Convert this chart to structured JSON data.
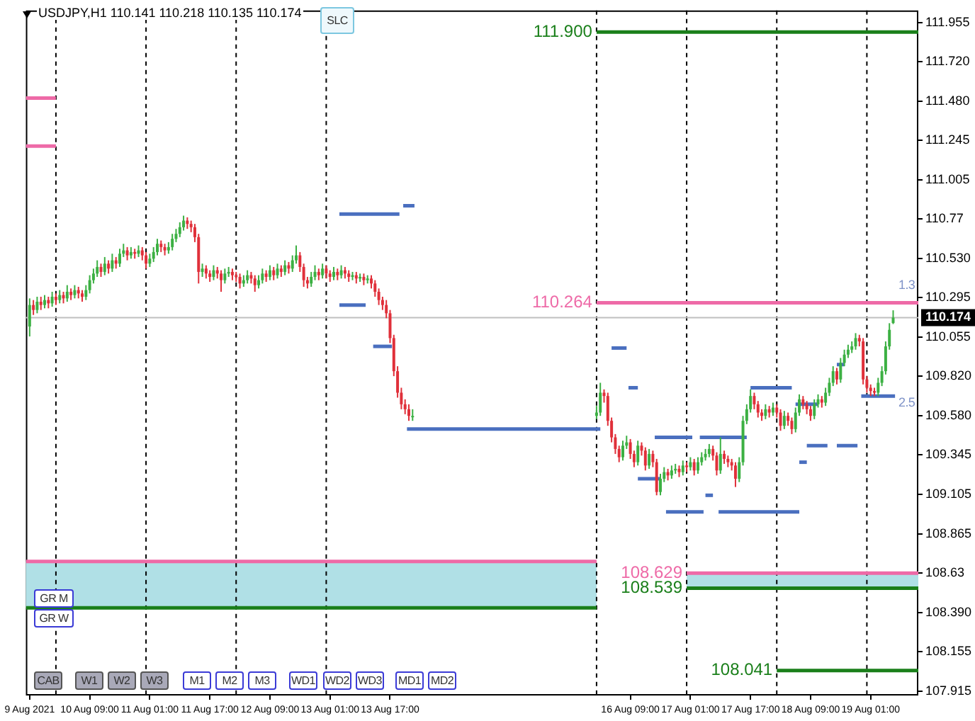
{
  "chart_data": {
    "type": "candlestick",
    "title": "USDJPY,H1  110.141 110.218 110.135 110.174",
    "xlim": [
      "2021-08-09T16:00",
      "2021-08-19T13:42"
    ],
    "ylim": [
      107.89,
      112.03
    ],
    "xticks": [
      {
        "value": "2021-08-09T17:00",
        "label": "9 Aug 2021"
      },
      {
        "value": "2021-08-10T09:00",
        "label": "10 Aug 09:00"
      },
      {
        "value": "2021-08-11T01:00",
        "label": "11 Aug 01:00"
      },
      {
        "value": "2021-08-11T17:00",
        "label": "11 Aug 17:00"
      },
      {
        "value": "2021-08-12T09:00",
        "label": "12 Aug 09:00"
      },
      {
        "value": "2021-08-13T01:00",
        "label": "13 Aug 01:00"
      },
      {
        "value": "2021-08-13T17:00",
        "label": "13 Aug 17:00"
      },
      {
        "value": "2021-08-16T09:00",
        "label": "16 Aug 09:00"
      },
      {
        "value": "2021-08-17T01:00",
        "label": "17 Aug 01:00"
      },
      {
        "value": "2021-08-17T17:00",
        "label": "17 Aug 17:00"
      },
      {
        "value": "2021-08-18T09:00",
        "label": "18 Aug 09:00"
      },
      {
        "value": "2021-08-19T01:00",
        "label": "19 Aug 01:00"
      }
    ],
    "yticks": [
      107.915,
      108.155,
      {
        "value": 108.39,
        "label": "108.390"
      },
      108.63,
      108.865,
      109.105,
      109.345,
      {
        "value": 109.58,
        "label": "109.580"
      },
      {
        "value": 109.82,
        "label": "109.820"
      },
      110.055,
      110.295,
      {
        "value": 110.53,
        "label": "110.530"
      },
      110.77,
      111.005,
      111.245,
      {
        "value": 111.48,
        "label": "111.480"
      },
      {
        "value": 111.72,
        "label": "111.720"
      },
      111.955
    ],
    "x": [
      "2021-08-09T17:00",
      "2021-08-09T18:00",
      "2021-08-09T19:00",
      "2021-08-09T20:00",
      "2021-08-09T21:00",
      "2021-08-09T22:00",
      "2021-08-09T23:00",
      "2021-08-10T00:00",
      "2021-08-10T01:00",
      "2021-08-10T02:00",
      "2021-08-10T03:00",
      "2021-08-10T04:00",
      "2021-08-10T05:00",
      "2021-08-10T06:00",
      "2021-08-10T07:00",
      "2021-08-10T08:00",
      "2021-08-10T09:00",
      "2021-08-10T10:00",
      "2021-08-10T11:00",
      "2021-08-10T12:00",
      "2021-08-10T13:00",
      "2021-08-10T14:00",
      "2021-08-10T15:00",
      "2021-08-10T16:00",
      "2021-08-10T17:00",
      "2021-08-10T18:00",
      "2021-08-10T19:00",
      "2021-08-10T20:00",
      "2021-08-10T21:00",
      "2021-08-10T22:00",
      "2021-08-10T23:00",
      "2021-08-11T00:00",
      "2021-08-11T01:00",
      "2021-08-11T02:00",
      "2021-08-11T03:00",
      "2021-08-11T04:00",
      "2021-08-11T05:00",
      "2021-08-11T06:00",
      "2021-08-11T07:00",
      "2021-08-11T08:00",
      "2021-08-11T09:00",
      "2021-08-11T10:00",
      "2021-08-11T11:00",
      "2021-08-11T12:00",
      "2021-08-11T13:00",
      "2021-08-11T14:00",
      "2021-08-11T15:00",
      "2021-08-11T16:00",
      "2021-08-11T17:00",
      "2021-08-11T18:00",
      "2021-08-11T19:00",
      "2021-08-11T20:00",
      "2021-08-11T21:00",
      "2021-08-11T22:00",
      "2021-08-11T23:00",
      "2021-08-12T00:00",
      "2021-08-12T01:00",
      "2021-08-12T02:00",
      "2021-08-12T03:00",
      "2021-08-12T04:00",
      "2021-08-12T05:00",
      "2021-08-12T06:00",
      "2021-08-12T07:00",
      "2021-08-12T08:00",
      "2021-08-12T09:00",
      "2021-08-12T10:00",
      "2021-08-12T11:00",
      "2021-08-12T12:00",
      "2021-08-12T13:00",
      "2021-08-12T14:00",
      "2021-08-12T15:00",
      "2021-08-12T16:00",
      "2021-08-12T17:00",
      "2021-08-12T18:00",
      "2021-08-12T19:00",
      "2021-08-12T20:00",
      "2021-08-12T21:00",
      "2021-08-12T22:00",
      "2021-08-12T23:00",
      "2021-08-13T00:00",
      "2021-08-13T01:00",
      "2021-08-13T02:00",
      "2021-08-13T03:00",
      "2021-08-13T04:00",
      "2021-08-13T05:00",
      "2021-08-13T06:00",
      "2021-08-13T07:00",
      "2021-08-13T08:00",
      "2021-08-13T09:00",
      "2021-08-13T10:00",
      "2021-08-13T11:00",
      "2021-08-13T12:00",
      "2021-08-13T13:00",
      "2021-08-13T14:00",
      "2021-08-13T15:00",
      "2021-08-13T16:00",
      "2021-08-13T17:00",
      "2021-08-13T18:00",
      "2021-08-13T19:00",
      "2021-08-13T20:00",
      "2021-08-13T21:00",
      "2021-08-13T22:00",
      "2021-08-13T23:00",
      "2021-08-16T00:00",
      "2021-08-16T01:00",
      "2021-08-16T02:00",
      "2021-08-16T03:00",
      "2021-08-16T04:00",
      "2021-08-16T05:00",
      "2021-08-16T06:00",
      "2021-08-16T07:00",
      "2021-08-16T08:00",
      "2021-08-16T09:00",
      "2021-08-16T10:00",
      "2021-08-16T11:00",
      "2021-08-16T12:00",
      "2021-08-16T13:00",
      "2021-08-16T14:00",
      "2021-08-16T15:00",
      "2021-08-16T16:00",
      "2021-08-16T17:00",
      "2021-08-16T18:00",
      "2021-08-16T19:00",
      "2021-08-16T20:00",
      "2021-08-16T21:00",
      "2021-08-16T22:00",
      "2021-08-16T23:00",
      "2021-08-17T00:00",
      "2021-08-17T01:00",
      "2021-08-17T02:00",
      "2021-08-17T03:00",
      "2021-08-17T04:00",
      "2021-08-17T05:00",
      "2021-08-17T06:00",
      "2021-08-17T07:00",
      "2021-08-17T08:00",
      "2021-08-17T09:00",
      "2021-08-17T10:00",
      "2021-08-17T11:00",
      "2021-08-17T12:00",
      "2021-08-17T13:00",
      "2021-08-17T14:00",
      "2021-08-17T15:00",
      "2021-08-17T16:00",
      "2021-08-17T17:00",
      "2021-08-17T18:00",
      "2021-08-17T19:00",
      "2021-08-17T20:00",
      "2021-08-17T21:00",
      "2021-08-17T22:00",
      "2021-08-17T23:00",
      "2021-08-18T00:00",
      "2021-08-18T01:00",
      "2021-08-18T02:00",
      "2021-08-18T03:00",
      "2021-08-18T04:00",
      "2021-08-18T05:00",
      "2021-08-18T06:00",
      "2021-08-18T07:00",
      "2021-08-18T08:00",
      "2021-08-18T09:00",
      "2021-08-18T10:00",
      "2021-08-18T11:00",
      "2021-08-18T12:00",
      "2021-08-18T13:00",
      "2021-08-18T14:00",
      "2021-08-18T15:00",
      "2021-08-18T16:00",
      "2021-08-18T17:00",
      "2021-08-18T18:00",
      "2021-08-18T19:00",
      "2021-08-18T20:00",
      "2021-08-18T21:00",
      "2021-08-18T22:00",
      "2021-08-18T23:00",
      "2021-08-19T00:00",
      "2021-08-19T01:00",
      "2021-08-19T02:00",
      "2021-08-19T03:00",
      "2021-08-19T04:00",
      "2021-08-19T05:00",
      "2021-08-19T06:00",
      "2021-08-19T07:00"
    ],
    "ohlc": [
      [
        110.12,
        110.29,
        110.06,
        110.25
      ],
      [
        110.25,
        110.28,
        110.19,
        110.22
      ],
      [
        110.22,
        110.3,
        110.2,
        110.27
      ],
      [
        110.27,
        110.3,
        110.22,
        110.25
      ],
      [
        110.25,
        110.31,
        110.23,
        110.28
      ],
      [
        110.28,
        110.3,
        110.23,
        110.26
      ],
      [
        110.26,
        110.33,
        110.24,
        110.3
      ],
      [
        110.3,
        110.32,
        110.25,
        110.28
      ],
      [
        110.28,
        110.34,
        110.26,
        110.31
      ],
      [
        110.31,
        110.33,
        110.26,
        110.29
      ],
      [
        110.29,
        110.37,
        110.27,
        110.33
      ],
      [
        110.33,
        110.35,
        110.28,
        110.31
      ],
      [
        110.31,
        110.37,
        110.29,
        110.34
      ],
      [
        110.34,
        110.36,
        110.29,
        110.32
      ],
      [
        110.32,
        110.34,
        110.27,
        110.3
      ],
      [
        110.3,
        110.37,
        110.28,
        110.34
      ],
      [
        110.34,
        110.43,
        110.32,
        110.4
      ],
      [
        110.4,
        110.47,
        110.38,
        110.44
      ],
      [
        110.44,
        110.52,
        110.42,
        110.48
      ],
      [
        110.48,
        110.5,
        110.42,
        110.45
      ],
      [
        110.45,
        110.54,
        110.43,
        110.5
      ],
      [
        110.5,
        110.52,
        110.44,
        110.47
      ],
      [
        110.47,
        110.56,
        110.45,
        110.52
      ],
      [
        110.52,
        110.54,
        110.47,
        110.5
      ],
      [
        110.5,
        110.59,
        110.48,
        110.56
      ],
      [
        110.56,
        110.62,
        110.54,
        110.58
      ],
      [
        110.58,
        110.6,
        110.52,
        110.55
      ],
      [
        110.55,
        110.6,
        110.53,
        110.57
      ],
      [
        110.57,
        110.59,
        110.53,
        110.56
      ],
      [
        110.56,
        110.61,
        110.54,
        110.58
      ],
      [
        110.58,
        110.6,
        110.52,
        110.55
      ],
      [
        110.55,
        110.57,
        110.47,
        110.5
      ],
      [
        110.5,
        110.56,
        110.48,
        110.53
      ],
      [
        110.53,
        110.6,
        110.51,
        110.57
      ],
      [
        110.57,
        110.65,
        110.55,
        110.62
      ],
      [
        110.62,
        110.64,
        110.57,
        110.6
      ],
      [
        110.6,
        110.62,
        110.55,
        110.58
      ],
      [
        110.58,
        110.63,
        110.56,
        110.6
      ],
      [
        110.6,
        110.68,
        110.58,
        110.65
      ],
      [
        110.65,
        110.71,
        110.63,
        110.68
      ],
      [
        110.68,
        110.75,
        110.66,
        110.72
      ],
      [
        110.72,
        110.79,
        110.7,
        110.76
      ],
      [
        110.76,
        110.78,
        110.71,
        110.74
      ],
      [
        110.74,
        110.76,
        110.69,
        110.72
      ],
      [
        110.72,
        110.74,
        110.63,
        110.66
      ],
      [
        110.66,
        110.68,
        110.38,
        110.45
      ],
      [
        110.45,
        110.5,
        110.42,
        110.47
      ],
      [
        110.47,
        110.49,
        110.41,
        110.44
      ],
      [
        110.44,
        110.46,
        110.39,
        110.42
      ],
      [
        110.42,
        110.49,
        110.4,
        110.46
      ],
      [
        110.46,
        110.48,
        110.41,
        110.44
      ],
      [
        110.44,
        110.46,
        110.33,
        110.4
      ],
      [
        110.4,
        110.47,
        110.38,
        110.44
      ],
      [
        110.44,
        110.48,
        110.42,
        110.45
      ],
      [
        110.45,
        110.47,
        110.4,
        110.43
      ],
      [
        110.43,
        110.45,
        110.39,
        110.42
      ],
      [
        110.42,
        110.44,
        110.35,
        110.38
      ],
      [
        110.38,
        110.43,
        110.36,
        110.4
      ],
      [
        110.4,
        110.46,
        110.38,
        110.43
      ],
      [
        110.43,
        110.45,
        110.38,
        110.41
      ],
      [
        110.41,
        110.43,
        110.33,
        110.37
      ],
      [
        110.37,
        110.43,
        110.35,
        110.4
      ],
      [
        110.4,
        110.47,
        110.38,
        110.44
      ],
      [
        110.44,
        110.46,
        110.39,
        110.42
      ],
      [
        110.42,
        110.49,
        110.4,
        110.46
      ],
      [
        110.46,
        110.48,
        110.4,
        110.43
      ],
      [
        110.43,
        110.5,
        110.41,
        110.47
      ],
      [
        110.47,
        110.49,
        110.42,
        110.45
      ],
      [
        110.45,
        110.52,
        110.43,
        110.49
      ],
      [
        110.49,
        110.51,
        110.44,
        110.47
      ],
      [
        110.47,
        110.55,
        110.45,
        110.52
      ],
      [
        110.52,
        110.61,
        110.5,
        110.55
      ],
      [
        110.55,
        110.57,
        110.45,
        110.48
      ],
      [
        110.48,
        110.5,
        110.36,
        110.4
      ],
      [
        110.4,
        110.42,
        110.35,
        110.38
      ],
      [
        110.38,
        110.45,
        110.36,
        110.42
      ],
      [
        110.42,
        110.49,
        110.4,
        110.45
      ],
      [
        110.45,
        110.47,
        110.4,
        110.43
      ],
      [
        110.43,
        110.5,
        110.41,
        110.47
      ],
      [
        110.47,
        110.49,
        110.41,
        110.44
      ],
      [
        110.44,
        110.46,
        110.39,
        110.42
      ],
      [
        110.42,
        110.48,
        110.4,
        110.45
      ],
      [
        110.45,
        110.47,
        110.4,
        110.43
      ],
      [
        110.43,
        110.49,
        110.41,
        110.46
      ],
      [
        110.46,
        110.48,
        110.41,
        110.44
      ],
      [
        110.44,
        110.46,
        110.39,
        110.42
      ],
      [
        110.42,
        110.45,
        110.4,
        110.43
      ],
      [
        110.43,
        110.45,
        110.38,
        110.41
      ],
      [
        110.41,
        110.44,
        110.39,
        110.42
      ],
      [
        110.42,
        110.44,
        110.37,
        110.4
      ],
      [
        110.4,
        110.43,
        110.38,
        110.41
      ],
      [
        110.41,
        110.43,
        110.35,
        110.38
      ],
      [
        110.38,
        110.4,
        110.3,
        110.33
      ],
      [
        110.33,
        110.35,
        110.25,
        110.28
      ],
      [
        110.28,
        110.3,
        110.22,
        110.25
      ],
      [
        110.25,
        110.28,
        110.17,
        110.2
      ],
      [
        110.2,
        110.22,
        110.02,
        110.05
      ],
      [
        110.05,
        110.07,
        109.82,
        109.85
      ],
      [
        109.85,
        109.88,
        109.69,
        109.72
      ],
      [
        109.72,
        109.75,
        109.62,
        109.65
      ],
      [
        109.65,
        109.68,
        109.59,
        109.62
      ],
      [
        109.62,
        109.65,
        109.55,
        109.58
      ],
      [
        109.58,
        109.62,
        109.55,
        109.58
      ],
      [
        109.58,
        109.64,
        109.56,
        109.6
      ],
      [
        109.6,
        109.78,
        109.58,
        109.72
      ],
      [
        109.72,
        109.74,
        109.66,
        109.7
      ],
      [
        109.7,
        109.72,
        109.52,
        109.55
      ],
      [
        109.55,
        109.57,
        109.42,
        109.45
      ],
      [
        109.45,
        109.47,
        109.35,
        109.38
      ],
      [
        109.38,
        109.4,
        109.3,
        109.33
      ],
      [
        109.33,
        109.43,
        109.31,
        109.4
      ],
      [
        109.4,
        109.46,
        109.38,
        109.42
      ],
      [
        109.42,
        109.44,
        109.32,
        109.35
      ],
      [
        109.35,
        109.37,
        109.27,
        109.3
      ],
      [
        109.3,
        109.43,
        109.28,
        109.4
      ],
      [
        109.4,
        109.42,
        109.34,
        109.37
      ],
      [
        109.37,
        109.39,
        109.25,
        109.28
      ],
      [
        109.28,
        109.38,
        109.26,
        109.35
      ],
      [
        109.35,
        109.37,
        109.27,
        109.3
      ],
      [
        109.3,
        109.32,
        109.1,
        109.12
      ],
      [
        109.12,
        109.23,
        109.1,
        109.2
      ],
      [
        109.2,
        109.27,
        109.18,
        109.24
      ],
      [
        109.24,
        109.26,
        109.19,
        109.22
      ],
      [
        109.22,
        109.28,
        109.2,
        109.25
      ],
      [
        109.25,
        109.29,
        109.23,
        109.26
      ],
      [
        109.26,
        109.28,
        109.21,
        109.24
      ],
      [
        109.24,
        109.31,
        109.22,
        109.28
      ],
      [
        109.28,
        109.3,
        109.24,
        109.27
      ],
      [
        109.27,
        109.33,
        109.25,
        109.3
      ],
      [
        109.3,
        109.32,
        109.22,
        109.25
      ],
      [
        109.25,
        109.33,
        109.23,
        109.3
      ],
      [
        109.3,
        109.36,
        109.28,
        109.33
      ],
      [
        109.33,
        109.38,
        109.31,
        109.35
      ],
      [
        109.35,
        109.41,
        109.33,
        109.38
      ],
      [
        109.38,
        109.4,
        109.31,
        109.34
      ],
      [
        109.34,
        109.36,
        109.22,
        109.25
      ],
      [
        109.25,
        109.45,
        109.23,
        109.35
      ],
      [
        109.35,
        109.37,
        109.29,
        109.32
      ],
      [
        109.32,
        109.34,
        109.27,
        109.3
      ],
      [
        109.3,
        109.32,
        109.25,
        109.28
      ],
      [
        109.28,
        109.3,
        109.15,
        109.2
      ],
      [
        109.2,
        109.33,
        109.18,
        109.3
      ],
      [
        109.3,
        109.58,
        109.28,
        109.55
      ],
      [
        109.55,
        109.65,
        109.53,
        109.62
      ],
      [
        109.62,
        109.74,
        109.6,
        109.7
      ],
      [
        109.7,
        109.72,
        109.62,
        109.65
      ],
      [
        109.65,
        109.67,
        109.57,
        109.6
      ],
      [
        109.6,
        109.62,
        109.55,
        109.58
      ],
      [
        109.58,
        109.65,
        109.56,
        109.62
      ],
      [
        109.62,
        109.64,
        109.57,
        109.6
      ],
      [
        109.6,
        109.66,
        109.58,
        109.63
      ],
      [
        109.63,
        109.65,
        109.57,
        109.6
      ],
      [
        109.6,
        109.62,
        109.49,
        109.52
      ],
      [
        109.52,
        109.61,
        109.5,
        109.58
      ],
      [
        109.58,
        109.6,
        109.52,
        109.55
      ],
      [
        109.55,
        109.57,
        109.47,
        109.5
      ],
      [
        109.5,
        109.63,
        109.48,
        109.6
      ],
      [
        109.6,
        109.71,
        109.58,
        109.68
      ],
      [
        109.68,
        109.7,
        109.62,
        109.65
      ],
      [
        109.65,
        109.67,
        109.59,
        109.62
      ],
      [
        109.62,
        109.64,
        109.55,
        109.58
      ],
      [
        109.58,
        109.68,
        109.56,
        109.65
      ],
      [
        109.65,
        109.71,
        109.63,
        109.68
      ],
      [
        109.68,
        109.7,
        109.63,
        109.66
      ],
      [
        109.66,
        109.75,
        109.64,
        109.72
      ],
      [
        109.72,
        109.81,
        109.7,
        109.78
      ],
      [
        109.78,
        109.88,
        109.76,
        109.85
      ],
      [
        109.85,
        109.87,
        109.77,
        109.8
      ],
      [
        109.8,
        109.93,
        109.78,
        109.9
      ],
      [
        109.9,
        109.98,
        109.88,
        109.95
      ],
      [
        109.95,
        110.01,
        109.93,
        109.98
      ],
      [
        109.98,
        110.03,
        109.96,
        110.0
      ],
      [
        110.0,
        110.08,
        109.98,
        110.05
      ],
      [
        110.05,
        110.07,
        110.0,
        110.03
      ],
      [
        110.03,
        110.05,
        109.77,
        109.8
      ],
      [
        109.8,
        109.82,
        109.72,
        109.75
      ],
      [
        109.75,
        109.77,
        109.7,
        109.73
      ],
      [
        109.73,
        109.75,
        109.7,
        109.72
      ],
      [
        109.72,
        109.81,
        109.7,
        109.78
      ],
      [
        109.78,
        109.88,
        109.76,
        109.85
      ],
      [
        109.85,
        110.03,
        109.83,
        110.0
      ],
      [
        110.0,
        110.14,
        109.98,
        110.1
      ],
      [
        110.141,
        110.218,
        110.135,
        110.174
      ]
    ],
    "colors": [
      "#3cb043",
      "#e0303a",
      "#3cb043",
      "#e0303a",
      "#3cb043",
      "#e0303a",
      "#3cb043",
      "#e0303a",
      "#3cb043",
      "#e0303a",
      "#3cb043",
      "#e0303a",
      "#3cb043",
      "#e0303a",
      "#e0303a",
      "#3cb043",
      "#3cb043",
      "#3cb043",
      "#3cb043",
      "#e0303a",
      "#3cb043",
      "#e0303a",
      "#3cb043",
      "#e0303a",
      "#3cb043",
      "#3cb043",
      "#e0303a",
      "#3cb043",
      "#e0303a",
      "#3cb043",
      "#e0303a",
      "#e0303a",
      "#3cb043",
      "#3cb043",
      "#3cb043",
      "#e0303a",
      "#e0303a",
      "#3cb043",
      "#3cb043",
      "#3cb043",
      "#3cb043",
      "#3cb043",
      "#e0303a",
      "#e0303a",
      "#e0303a",
      "#e0303a",
      "#3cb043",
      "#e0303a",
      "#e0303a",
      "#3cb043",
      "#e0303a",
      "#e0303a",
      "#3cb043",
      "#3cb043",
      "#e0303a",
      "#e0303a",
      "#e0303a",
      "#3cb043",
      "#3cb043",
      "#e0303a",
      "#e0303a",
      "#3cb043",
      "#3cb043",
      "#e0303a",
      "#3cb043",
      "#e0303a",
      "#3cb043",
      "#e0303a",
      "#3cb043",
      "#e0303a",
      "#3cb043",
      "#3cb043",
      "#e0303a",
      "#e0303a",
      "#e0303a",
      "#3cb043",
      "#3cb043",
      "#e0303a",
      "#3cb043",
      "#e0303a",
      "#e0303a",
      "#3cb043",
      "#e0303a",
      "#3cb043",
      "#e0303a",
      "#e0303a",
      "#3cb043",
      "#e0303a",
      "#3cb043",
      "#e0303a",
      "#3cb043",
      "#e0303a",
      "#e0303a",
      "#e0303a",
      "#e0303a",
      "#e0303a",
      "#e0303a",
      "#e0303a",
      "#e0303a",
      "#e0303a",
      "#e0303a",
      "#e0303a",
      "#3cb043",
      "#3cb043",
      "#3cb043",
      "#e0303a",
      "#e0303a",
      "#e0303a",
      "#e0303a",
      "#e0303a",
      "#3cb043",
      "#3cb043",
      "#e0303a",
      "#e0303a",
      "#3cb043",
      "#e0303a",
      "#e0303a",
      "#3cb043",
      "#e0303a",
      "#e0303a",
      "#3cb043",
      "#3cb043",
      "#e0303a",
      "#3cb043",
      "#3cb043",
      "#e0303a",
      "#3cb043",
      "#e0303a",
      "#3cb043",
      "#e0303a",
      "#3cb043",
      "#3cb043",
      "#3cb043",
      "#3cb043",
      "#e0303a",
      "#e0303a",
      "#3cb043",
      "#e0303a",
      "#e0303a",
      "#e0303a",
      "#e0303a",
      "#3cb043",
      "#3cb043",
      "#3cb043",
      "#3cb043",
      "#e0303a",
      "#e0303a",
      "#e0303a",
      "#3cb043",
      "#e0303a",
      "#3cb043",
      "#e0303a",
      "#e0303a",
      "#3cb043",
      "#e0303a",
      "#e0303a",
      "#3cb043",
      "#3cb043",
      "#e0303a",
      "#e0303a",
      "#e0303a",
      "#3cb043",
      "#3cb043",
      "#e0303a",
      "#3cb043",
      "#3cb043",
      "#3cb043",
      "#e0303a",
      "#3cb043",
      "#3cb043",
      "#3cb043",
      "#3cb043",
      "#3cb043",
      "#e0303a",
      "#e0303a",
      "#e0303a",
      "#e0303a",
      "#e0303a",
      "#3cb043",
      "#3cb043",
      "#3cb043",
      "#3cb043",
      "#3cb043"
    ],
    "series": [
      {
        "type": "line",
        "color": "#ee6aa7",
        "x": [
          "2021-08-09T16:00",
          "2021-08-16T00:00"
        ],
        "values": [
          108.7,
          108.7
        ],
        "lower": [
          108.42,
          108.42
        ],
        "upper": [
          108.7,
          108.7
        ]
      },
      {
        "type": "line",
        "color": "#1a7f1a",
        "x": [
          "2021-08-09T16:00",
          "2021-08-16T00:00"
        ],
        "values": [
          108.42,
          108.42
        ]
      },
      {
        "type": "line",
        "color": "#ee6aa7",
        "x": [
          "2021-08-09T16:00",
          "2021-08-10T00:00"
        ],
        "values": [
          111.5,
          111.5
        ]
      },
      {
        "type": "line",
        "color": "#ee6aa7",
        "x": [
          "2021-08-09T16:00",
          "2021-08-10T00:00"
        ],
        "values": [
          111.21,
          111.21
        ]
      },
      {
        "type": "line",
        "name": "111.900",
        "color": "#1a7f1a",
        "x": [
          "2021-08-16T00:00",
          "2021-08-19T13:42"
        ],
        "values": [
          111.9,
          111.9
        ]
      },
      {
        "type": "line",
        "name": "110.264",
        "color": "#ee6aa7",
        "x": [
          "2021-08-16T00:00",
          "2021-08-19T13:42"
        ],
        "values": [
          110.264,
          110.264
        ]
      },
      {
        "type": "line",
        "name": "108.629",
        "color": "#ee6aa7",
        "x": [
          "2021-08-17T00:00",
          "2021-08-19T13:42"
        ],
        "values": [
          108.629,
          108.629
        ],
        "lower": [
          108.539,
          108.539
        ],
        "upper": [
          108.629,
          108.629
        ]
      },
      {
        "type": "line",
        "name": "108.539",
        "color": "#1a7f1a",
        "x": [
          "2021-08-17T00:00",
          "2021-08-19T13:42"
        ],
        "values": [
          108.539,
          108.539
        ]
      },
      {
        "type": "line",
        "name": "108.041",
        "color": "#1a7f1a",
        "x": [
          "2021-08-18T00:00",
          "2021-08-19T13:42"
        ],
        "values": [
          108.041,
          108.041
        ]
      },
      {
        "type": "line",
        "color": "#4a6fbf",
        "x": [
          "2021-08-13T03:30",
          "2021-08-13T19:30"
        ],
        "values": [
          110.8,
          110.8
        ]
      },
      {
        "type": "line",
        "color": "#4a6fbf",
        "x": [
          "2021-08-13T20:30",
          "2021-08-13T23:30"
        ],
        "values": [
          110.85,
          110.85
        ]
      },
      {
        "type": "line",
        "color": "#4a6fbf",
        "x": [
          "2021-08-13T03:30",
          "2021-08-13T10:30"
        ],
        "values": [
          110.25,
          110.25
        ]
      },
      {
        "type": "line",
        "color": "#4a6fbf",
        "x": [
          "2021-08-13T12:30",
          "2021-08-13T17:30"
        ],
        "values": [
          110.0,
          110.0
        ]
      },
      {
        "type": "line",
        "color": "#4a6fbf",
        "x": [
          "2021-08-16T04:00",
          "2021-08-16T08:00"
        ],
        "values": [
          109.99,
          109.99
        ]
      },
      {
        "type": "line",
        "color": "#4a6fbf",
        "x": [
          "2021-08-16T08:30",
          "2021-08-16T11:00"
        ],
        "values": [
          109.75,
          109.75
        ]
      },
      {
        "type": "line",
        "color": "#4a6fbf",
        "x": [
          "2021-08-13T21:30",
          "2021-08-16T01:00"
        ],
        "values": [
          109.5,
          109.5
        ]
      },
      {
        "type": "line",
        "color": "#4a6fbf",
        "x": [
          "2021-08-16T11:00",
          "2021-08-16T17:00"
        ],
        "values": [
          109.2,
          109.2
        ]
      },
      {
        "type": "line",
        "color": "#4a6fbf",
        "x": [
          "2021-08-16T15:30",
          "2021-08-17T01:30"
        ],
        "values": [
          109.45,
          109.45
        ]
      },
      {
        "type": "line",
        "color": "#4a6fbf",
        "x": [
          "2021-08-17T03:30",
          "2021-08-17T16:00"
        ],
        "values": [
          109.45,
          109.45
        ]
      },
      {
        "type": "line",
        "color": "#4a6fbf",
        "x": [
          "2021-08-17T05:00",
          "2021-08-17T07:00"
        ],
        "values": [
          109.1,
          109.1
        ]
      },
      {
        "type": "line",
        "color": "#4a6fbf",
        "x": [
          "2021-08-17T17:00",
          "2021-08-18T04:00"
        ],
        "values": [
          109.75,
          109.75
        ]
      },
      {
        "type": "line",
        "color": "#4a6fbf",
        "x": [
          "2021-08-18T05:00",
          "2021-08-18T11:00"
        ],
        "values": [
          109.65,
          109.65
        ]
      },
      {
        "type": "line",
        "color": "#4a6fbf",
        "x": [
          "2021-08-18T08:00",
          "2021-08-18T13:30"
        ],
        "values": [
          109.4,
          109.4
        ]
      },
      {
        "type": "line",
        "color": "#4a6fbf",
        "x": [
          "2021-08-18T16:00",
          "2021-08-18T21:30"
        ],
        "values": [
          109.4,
          109.4
        ]
      },
      {
        "type": "line",
        "color": "#4a6fbf",
        "x": [
          "2021-08-18T16:00",
          "2021-08-18T18:00"
        ],
        "values": [
          109.89,
          109.89
        ]
      },
      {
        "type": "line",
        "color": "#4a6fbf",
        "x": [
          "2021-08-18T22:30",
          "2021-08-19T07:30"
        ],
        "values": [
          109.7,
          109.7
        ]
      },
      {
        "type": "line",
        "color": "#4a6fbf",
        "x": [
          "2021-08-16T18:30",
          "2021-08-17T04:30"
        ],
        "values": [
          109.0,
          109.0
        ]
      },
      {
        "type": "line",
        "color": "#4a6fbf",
        "x": [
          "2021-08-17T08:30",
          "2021-08-18T06:00"
        ],
        "values": [
          109.0,
          109.0
        ]
      },
      {
        "type": "line",
        "color": "#4a6fbf",
        "x": [
          "2021-08-18T06:00",
          "2021-08-18T08:00"
        ],
        "values": [
          109.3,
          109.3
        ]
      }
    ],
    "ref_lines": [
      {
        "axis": "x",
        "value": "2021-08-10T00:00",
        "color": "#000000",
        "line_style": "dashed"
      },
      {
        "axis": "x",
        "value": "2021-08-11T00:00",
        "color": "#000000",
        "line_style": "dashed"
      },
      {
        "axis": "x",
        "value": "2021-08-12T00:00",
        "color": "#000000",
        "line_style": "dashed"
      },
      {
        "axis": "x",
        "value": "2021-08-13T00:00",
        "color": "#000000",
        "line_style": "dashed"
      },
      {
        "axis": "x",
        "value": "2021-08-16T00:00",
        "color": "#000000",
        "line_style": "dashed"
      },
      {
        "axis": "x",
        "value": "2021-08-17T00:00",
        "color": "#000000",
        "line_style": "dashed"
      },
      {
        "axis": "x",
        "value": "2021-08-18T00:00",
        "color": "#000000",
        "line_style": "dashed"
      },
      {
        "axis": "x",
        "value": "2021-08-19T00:00",
        "color": "#000000",
        "line_style": "dashed"
      },
      {
        "axis": "y",
        "value": 110.174,
        "label": "110.174",
        "color": "#c0c0c0"
      }
    ],
    "annotations": [
      "1.3",
      "2.5",
      "SLC",
      "GR M",
      "GR W",
      "CAB",
      "W1",
      "W2",
      "W3",
      "M1",
      "M2",
      "M3",
      "WD1",
      "WD2",
      "WD3",
      "MD1",
      "MD2"
    ]
  }
}
